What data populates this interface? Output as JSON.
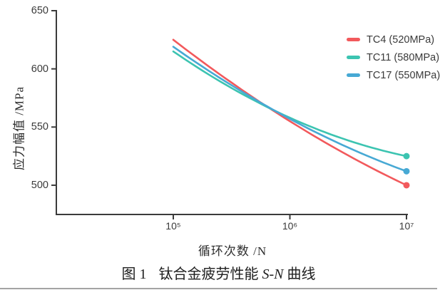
{
  "figure_caption": {
    "fig_label": "图 1",
    "title_before_italic": "钛合金疲劳性能 ",
    "title_italic": "S-N",
    "title_after_italic": " 曲线"
  },
  "chart_data": {
    "type": "line",
    "title": "钛合金疲劳性能 S-N 曲线",
    "xlabel": "循环次数 /N",
    "ylabel": "应力幅值 /MPa",
    "x_scale": "log10",
    "xlim_log": [
      4.0,
      7.02
    ],
    "ylim": [
      474,
      651
    ],
    "grid": false,
    "legend_position": "top-right",
    "axis_color": "#3a3a3a",
    "text_color": "#3a3a3a",
    "x_ticks": [
      {
        "log": 5,
        "label": "10⁵"
      },
      {
        "log": 6,
        "label": "10⁶"
      },
      {
        "log": 7,
        "label": "10⁷"
      }
    ],
    "y_ticks": [
      {
        "value": 650,
        "label": "650"
      },
      {
        "value": 600,
        "label": "600"
      },
      {
        "value": 550,
        "label": "550"
      },
      {
        "value": 500,
        "label": "500"
      }
    ],
    "series": [
      {
        "name": "TC4 (520MPa)",
        "color": "#f2595c",
        "end_marker": "dot",
        "points": [
          {
            "log_cycles": 5,
            "stress_mpa": 625
          },
          {
            "log_cycles": 6,
            "stress_mpa": 555
          },
          {
            "log_cycles": 7,
            "stress_mpa": 500
          }
        ]
      },
      {
        "name": "TC11 (580MPa)",
        "color": "#3cc4b1",
        "end_marker": "dot",
        "points": [
          {
            "log_cycles": 5,
            "stress_mpa": 615
          },
          {
            "log_cycles": 6,
            "stress_mpa": 558
          },
          {
            "log_cycles": 7,
            "stress_mpa": 525
          }
        ]
      },
      {
        "name": "TC17 (550MPa)",
        "color": "#47a9d4",
        "end_marker": "dot",
        "points": [
          {
            "log_cycles": 5,
            "stress_mpa": 619
          },
          {
            "log_cycles": 6,
            "stress_mpa": 557
          },
          {
            "log_cycles": 7,
            "stress_mpa": 512
          }
        ]
      }
    ]
  }
}
